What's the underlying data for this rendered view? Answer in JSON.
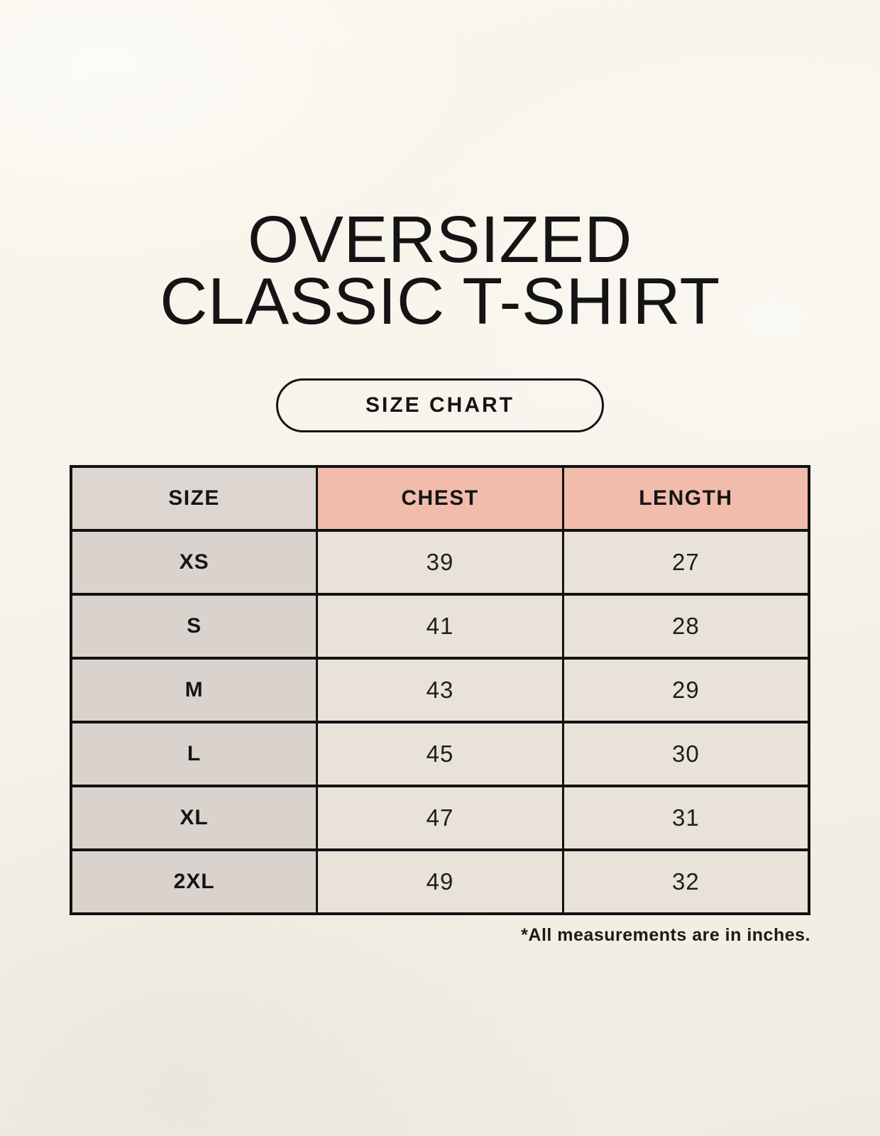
{
  "header": {
    "title_line1": "OVERSIZED",
    "title_line2": "CLASSIC T-SHIRT",
    "size_chart_button_label": "SIZE CHART"
  },
  "footnote": "*All measurements are in inches.",
  "colors": {
    "page_background": "#f8f4eb",
    "header_size_cell_bg": "#ddd6d0",
    "header_measure_cell_bg": "#f1bcab",
    "size_column_bg": "#dad3cd",
    "value_cell_bg": "#e9e2d8",
    "table_border": "#121212",
    "text": "#1a1a1a"
  },
  "chart_data": {
    "type": "table",
    "title": "OVERSIZED CLASSIC T-SHIRT",
    "subtitle": "SIZE CHART",
    "columns": [
      "SIZE",
      "CHEST",
      "LENGTH"
    ],
    "rows": [
      {
        "size": "XS",
        "chest": "39",
        "length": "27"
      },
      {
        "size": "S",
        "chest": "41",
        "length": "28"
      },
      {
        "size": "M",
        "chest": "43",
        "length": "29"
      },
      {
        "size": "L",
        "chest": "45",
        "length": "30"
      },
      {
        "size": "XL",
        "chest": "47",
        "length": "31"
      },
      {
        "size": "2XL",
        "chest": "49",
        "length": "32"
      }
    ],
    "units": "inches",
    "note": "*All measurements are in inches."
  }
}
